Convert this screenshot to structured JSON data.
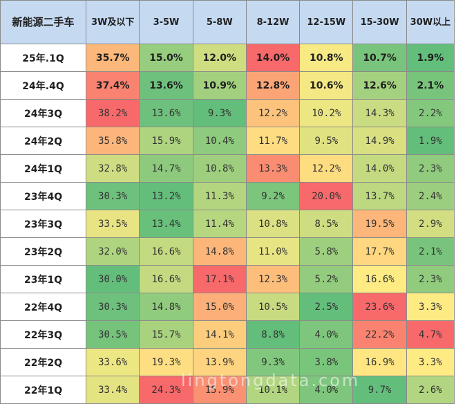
{
  "chart_data": {
    "type": "heatmap",
    "corner_label": "新能源二手车",
    "columns": [
      "3W及以下",
      "3-5W",
      "5-8W",
      "8-12W",
      "12-15W",
      "15-30W",
      "30W以上"
    ],
    "rows": [
      {
        "label": "25年.1Q",
        "values": [
          "35.7%",
          "15.0%",
          "12.0%",
          "14.0%",
          "10.8%",
          "10.7%",
          "1.9%"
        ]
      },
      {
        "label": "24年.4Q",
        "values": [
          "37.4%",
          "13.6%",
          "10.9%",
          "12.8%",
          "10.6%",
          "12.6%",
          "2.1%"
        ]
      },
      {
        "label": "24年3Q",
        "values": [
          "38.2%",
          "13.6%",
          "9.3%",
          "12.2%",
          "10.2%",
          "14.3%",
          "2.2%"
        ]
      },
      {
        "label": "24年2Q",
        "values": [
          "35.8%",
          "15.9%",
          "10.4%",
          "11.7%",
          "9.5%",
          "14.9%",
          "1.9%"
        ]
      },
      {
        "label": "24年1Q",
        "values": [
          "32.8%",
          "14.7%",
          "10.8%",
          "13.3%",
          "12.2%",
          "14.0%",
          "2.3%"
        ]
      },
      {
        "label": "23年4Q",
        "values": [
          "30.3%",
          "13.2%",
          "11.3%",
          "9.2%",
          "20.0%",
          "13.7%",
          "2.4%"
        ]
      },
      {
        "label": "23年3Q",
        "values": [
          "33.5%",
          "13.4%",
          "11.4%",
          "10.8%",
          "8.5%",
          "19.5%",
          "2.9%"
        ]
      },
      {
        "label": "23年2Q",
        "values": [
          "32.0%",
          "16.6%",
          "14.8%",
          "11.0%",
          "5.8%",
          "17.7%",
          "2.1%"
        ]
      },
      {
        "label": "23年1Q",
        "values": [
          "30.0%",
          "16.6%",
          "17.1%",
          "12.3%",
          "5.2%",
          "16.6%",
          "2.3%"
        ]
      },
      {
        "label": "22年4Q",
        "values": [
          "30.3%",
          "14.8%",
          "15.0%",
          "10.5%",
          "2.5%",
          "23.6%",
          "3.3%"
        ]
      },
      {
        "label": "22年3Q",
        "values": [
          "30.5%",
          "15.7%",
          "14.1%",
          "8.8%",
          "4.0%",
          "22.2%",
          "4.7%"
        ]
      },
      {
        "label": "22年2Q",
        "values": [
          "33.6%",
          "19.3%",
          "13.9%",
          "9.3%",
          "3.8%",
          "16.9%",
          "3.3%"
        ]
      },
      {
        "label": "22年1Q",
        "values": [
          "33.4%",
          "24.3%",
          "15.9%",
          "10.1%",
          "4.0%",
          "9.7%",
          "2.6%"
        ]
      }
    ],
    "bold_rows": [
      0,
      1
    ],
    "colors": {
      "header_bg": "#c5d9f1",
      "low": "#63be7b",
      "mid": "#ffeb84",
      "high": "#f8696b"
    }
  },
  "watermark": "lingtongdata.com"
}
